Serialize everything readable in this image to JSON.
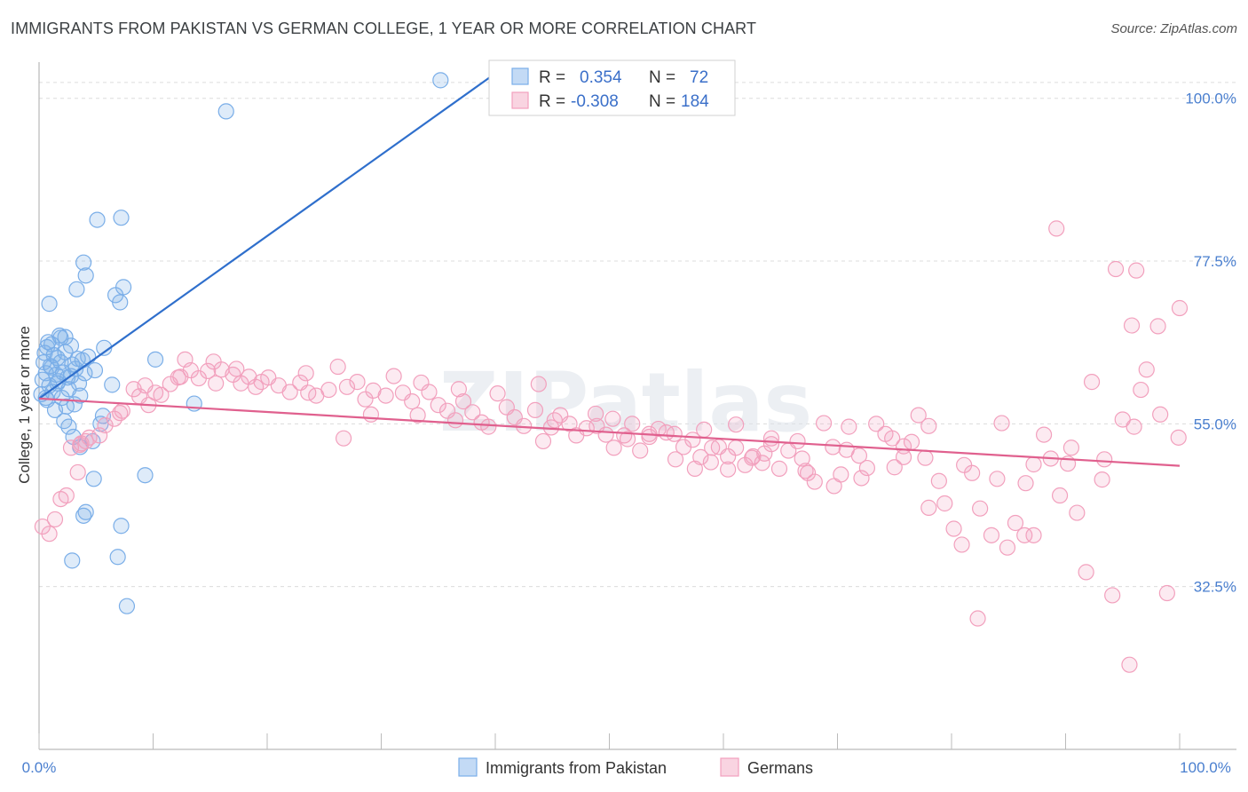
{
  "title": "IMMIGRANTS FROM PAKISTAN VS GERMAN COLLEGE, 1 YEAR OR MORE CORRELATION CHART",
  "source": "Source: ZipAtlas.com",
  "watermark": "ZIPatlas",
  "colors": {
    "blue": "#7aaee8",
    "blue_fill": "rgba(122,174,232,0.25)",
    "blue_line": "#2f6fcc",
    "pink": "#f2a0bd",
    "pink_fill": "rgba(242,160,189,0.22)",
    "pink_line": "#e0608e"
  },
  "chart_data": {
    "type": "scatter",
    "xlabel": "",
    "ylabel": "College, 1 year or more",
    "xlim": [
      0,
      100
    ],
    "ylim": [
      10,
      105
    ],
    "x_tick_labels": [
      "0.0%",
      "100.0%"
    ],
    "y_ticks": [
      32.5,
      55.0,
      77.5,
      100.0
    ],
    "y_tick_labels": [
      "32.5%",
      "55.0%",
      "77.5%",
      "100.0%"
    ],
    "grid": true,
    "legend": {
      "position": "top-center",
      "entries": [
        {
          "r_label": "R =",
          "r_value": "0.354",
          "n_label": "N =",
          "n_value": "72"
        },
        {
          "r_label": "R =",
          "r_value": "-0.308",
          "n_label": "N =",
          "n_value": "184"
        }
      ]
    },
    "series": [
      {
        "name": "Immigrants from Pakistan",
        "trend": {
          "x": [
            0,
            40.5
          ],
          "y": [
            58.5,
            104
          ]
        },
        "points": [
          [
            35.2,
            102.5
          ],
          [
            16.4,
            98.2
          ],
          [
            5.1,
            83.2
          ],
          [
            7.2,
            83.5
          ],
          [
            3.9,
            77.3
          ],
          [
            4.1,
            75.5
          ],
          [
            7.4,
            73.9
          ],
          [
            3.3,
            73.6
          ],
          [
            6.7,
            72.8
          ],
          [
            7.1,
            71.8
          ],
          [
            0.9,
            71.6
          ],
          [
            1.8,
            67.2
          ],
          [
            1.9,
            66.9
          ],
          [
            0.8,
            66.3
          ],
          [
            1.1,
            66.0
          ],
          [
            2.8,
            65.8
          ],
          [
            5.7,
            65.5
          ],
          [
            2.3,
            64.9
          ],
          [
            0.5,
            64.8
          ],
          [
            1.3,
            64.5
          ],
          [
            1.6,
            64.1
          ],
          [
            4.3,
            64.3
          ],
          [
            3.8,
            63.8
          ],
          [
            0.4,
            63.5
          ],
          [
            2.9,
            63.2
          ],
          [
            1.0,
            63.0
          ],
          [
            3.2,
            62.6
          ],
          [
            4.9,
            62.4
          ],
          [
            2.1,
            62.1
          ],
          [
            0.6,
            62.0
          ],
          [
            1.5,
            61.8
          ],
          [
            2.5,
            61.4
          ],
          [
            0.3,
            61.1
          ],
          [
            1.7,
            60.9
          ],
          [
            3.5,
            60.6
          ],
          [
            0.9,
            60.3
          ],
          [
            2.6,
            59.8
          ],
          [
            6.4,
            60.4
          ],
          [
            1.2,
            59.4
          ],
          [
            0.2,
            59.1
          ],
          [
            3.6,
            58.9
          ],
          [
            2.0,
            58.6
          ],
          [
            0.7,
            58.3
          ],
          [
            3.1,
            57.7
          ],
          [
            2.4,
            57.4
          ],
          [
            1.4,
            56.9
          ],
          [
            5.6,
            56.1
          ],
          [
            2.2,
            55.4
          ],
          [
            5.4,
            55.0
          ],
          [
            2.6,
            54.6
          ],
          [
            10.2,
            63.9
          ],
          [
            13.6,
            57.8
          ],
          [
            3.0,
            53.2
          ],
          [
            3.6,
            51.8
          ],
          [
            4.7,
            52.6
          ],
          [
            9.3,
            47.9
          ],
          [
            4.8,
            47.4
          ],
          [
            4.1,
            42.8
          ],
          [
            3.9,
            42.3
          ],
          [
            7.2,
            40.9
          ],
          [
            2.9,
            36.1
          ],
          [
            6.9,
            36.6
          ],
          [
            7.7,
            29.8
          ],
          [
            0.6,
            58.6
          ],
          [
            1.6,
            60.6
          ],
          [
            2.8,
            61.6
          ],
          [
            1.1,
            62.8
          ],
          [
            3.4,
            64.0
          ],
          [
            0.7,
            65.6
          ],
          [
            2.3,
            67.0
          ],
          [
            4.0,
            62.0
          ],
          [
            1.9,
            63.5
          ]
        ]
      },
      {
        "name": "Germans",
        "trend": {
          "x": [
            0,
            100
          ],
          "y": [
            58.5,
            49.2
          ]
        },
        "points": [
          [
            0.3,
            40.8
          ],
          [
            0.9,
            39.8
          ],
          [
            1.4,
            41.8
          ],
          [
            1.9,
            44.6
          ],
          [
            2.4,
            45.1
          ],
          [
            3.4,
            48.3
          ],
          [
            2.8,
            51.7
          ],
          [
            3.7,
            52.3
          ],
          [
            4.4,
            53.1
          ],
          [
            5.3,
            53.4
          ],
          [
            6.6,
            55.7
          ],
          [
            7.3,
            56.8
          ],
          [
            8.3,
            59.8
          ],
          [
            9.3,
            60.3
          ],
          [
            10.2,
            59.3
          ],
          [
            11.5,
            60.5
          ],
          [
            12.2,
            61.4
          ],
          [
            12.8,
            63.9
          ],
          [
            13.3,
            62.4
          ],
          [
            14.0,
            61.3
          ],
          [
            14.8,
            62.3
          ],
          [
            15.3,
            63.6
          ],
          [
            16.0,
            62.5
          ],
          [
            17.0,
            61.8
          ],
          [
            17.7,
            60.6
          ],
          [
            18.4,
            61.5
          ],
          [
            19.0,
            60.1
          ],
          [
            20.1,
            61.4
          ],
          [
            21.0,
            60.3
          ],
          [
            22.0,
            59.4
          ],
          [
            22.9,
            60.7
          ],
          [
            23.6,
            59.3
          ],
          [
            24.3,
            58.9
          ],
          [
            25.4,
            59.7
          ],
          [
            26.2,
            62.9
          ],
          [
            27.0,
            60.1
          ],
          [
            27.9,
            60.8
          ],
          [
            28.6,
            58.4
          ],
          [
            29.3,
            59.6
          ],
          [
            30.4,
            58.9
          ],
          [
            31.1,
            61.6
          ],
          [
            31.9,
            59.3
          ],
          [
            32.7,
            58.1
          ],
          [
            33.5,
            60.7
          ],
          [
            34.2,
            59.4
          ],
          [
            35.0,
            57.6
          ],
          [
            35.8,
            56.8
          ],
          [
            36.5,
            55.5
          ],
          [
            37.2,
            58.1
          ],
          [
            38.0,
            56.6
          ],
          [
            38.8,
            55.2
          ],
          [
            39.4,
            54.6
          ],
          [
            40.2,
            59.2
          ],
          [
            41.0,
            57.3
          ],
          [
            41.7,
            55.9
          ],
          [
            42.5,
            54.7
          ],
          [
            43.5,
            56.9
          ],
          [
            44.2,
            52.6
          ],
          [
            44.9,
            54.5
          ],
          [
            45.7,
            56.2
          ],
          [
            46.5,
            55.0
          ],
          [
            47.1,
            53.4
          ],
          [
            48.0,
            54.4
          ],
          [
            48.8,
            56.4
          ],
          [
            49.7,
            53.5
          ],
          [
            50.4,
            51.7
          ],
          [
            51.3,
            53.4
          ],
          [
            52.0,
            55.0
          ],
          [
            52.7,
            51.3
          ],
          [
            53.5,
            53.2
          ],
          [
            54.3,
            54.3
          ],
          [
            55.0,
            53.8
          ],
          [
            55.8,
            50.1
          ],
          [
            56.5,
            51.8
          ],
          [
            57.3,
            52.8
          ],
          [
            58.0,
            50.4
          ],
          [
            58.9,
            49.7
          ],
          [
            59.6,
            51.8
          ],
          [
            60.4,
            50.5
          ],
          [
            61.1,
            54.9
          ],
          [
            61.9,
            49.3
          ],
          [
            62.6,
            50.5
          ],
          [
            63.4,
            49.6
          ],
          [
            64.2,
            52.2
          ],
          [
            64.9,
            48.8
          ],
          [
            65.7,
            51.3
          ],
          [
            66.5,
            52.6
          ],
          [
            67.2,
            48.5
          ],
          [
            68.0,
            47.0
          ],
          [
            68.8,
            55.1
          ],
          [
            69.6,
            51.8
          ],
          [
            70.3,
            48.0
          ],
          [
            71.0,
            54.6
          ],
          [
            71.9,
            50.6
          ],
          [
            72.6,
            48.9
          ],
          [
            73.4,
            55.0
          ],
          [
            74.2,
            53.6
          ],
          [
            75.0,
            49.0
          ],
          [
            75.8,
            51.9
          ],
          [
            76.5,
            52.5
          ],
          [
            77.1,
            56.2
          ],
          [
            78.0,
            54.7
          ],
          [
            78.9,
            47.1
          ],
          [
            79.4,
            44.0
          ],
          [
            80.2,
            40.5
          ],
          [
            80.9,
            38.3
          ],
          [
            81.8,
            48.2
          ],
          [
            82.5,
            43.3
          ],
          [
            83.5,
            39.6
          ],
          [
            84.4,
            55.1
          ],
          [
            84.9,
            37.9
          ],
          [
            85.6,
            41.3
          ],
          [
            86.5,
            46.8
          ],
          [
            87.2,
            39.6
          ],
          [
            88.1,
            53.5
          ],
          [
            88.7,
            50.2
          ],
          [
            89.5,
            45.1
          ],
          [
            90.2,
            49.5
          ],
          [
            91.0,
            42.7
          ],
          [
            91.8,
            34.5
          ],
          [
            92.3,
            60.8
          ],
          [
            93.4,
            50.1
          ],
          [
            94.1,
            31.3
          ],
          [
            95.0,
            55.6
          ],
          [
            95.8,
            68.6
          ],
          [
            96.6,
            59.7
          ],
          [
            97.1,
            62.5
          ],
          [
            98.3,
            56.3
          ],
          [
            98.9,
            31.6
          ],
          [
            99.9,
            53.1
          ],
          [
            89.2,
            82.0
          ],
          [
            94.4,
            76.4
          ],
          [
            96.2,
            76.2
          ],
          [
            98.1,
            68.5
          ],
          [
            100.0,
            71.0
          ],
          [
            86.4,
            39.6
          ],
          [
            82.3,
            28.1
          ],
          [
            95.6,
            21.7
          ],
          [
            50.3,
            55.7
          ],
          [
            53.5,
            53.6
          ],
          [
            45.2,
            55.5
          ],
          [
            43.8,
            60.5
          ],
          [
            36.8,
            59.8
          ],
          [
            33.2,
            56.2
          ],
          [
            29.1,
            56.3
          ],
          [
            26.7,
            53.0
          ],
          [
            23.4,
            62.0
          ],
          [
            19.5,
            60.8
          ],
          [
            17.3,
            62.6
          ],
          [
            15.5,
            60.6
          ],
          [
            12.4,
            61.5
          ],
          [
            10.7,
            59.0
          ],
          [
            9.6,
            57.6
          ],
          [
            8.8,
            58.8
          ],
          [
            7.1,
            56.5
          ],
          [
            5.8,
            54.8
          ],
          [
            4.1,
            52.6
          ],
          [
            3.6,
            52.1
          ],
          [
            58.3,
            54.2
          ],
          [
            61.1,
            51.7
          ],
          [
            60.4,
            48.7
          ],
          [
            62.5,
            50.3
          ],
          [
            64.2,
            53.0
          ],
          [
            66.9,
            50.2
          ],
          [
            69.7,
            46.4
          ],
          [
            72.1,
            47.5
          ],
          [
            75.8,
            50.4
          ],
          [
            78.0,
            43.4
          ],
          [
            81.1,
            49.3
          ],
          [
            84.0,
            47.4
          ],
          [
            87.2,
            49.4
          ],
          [
            90.5,
            51.7
          ],
          [
            93.2,
            47.3
          ],
          [
            96.0,
            54.6
          ],
          [
            48.9,
            54.7
          ],
          [
            51.6,
            52.9
          ],
          [
            55.7,
            53.6
          ],
          [
            57.5,
            48.8
          ],
          [
            59.0,
            51.7
          ],
          [
            63.6,
            50.9
          ],
          [
            67.4,
            48.2
          ],
          [
            70.8,
            51.4
          ],
          [
            74.8,
            53.0
          ],
          [
            77.7,
            50.3
          ]
        ]
      }
    ]
  },
  "bottom_legend": [
    {
      "label": "Immigrants from Pakistan"
    },
    {
      "label": "Germans"
    }
  ]
}
